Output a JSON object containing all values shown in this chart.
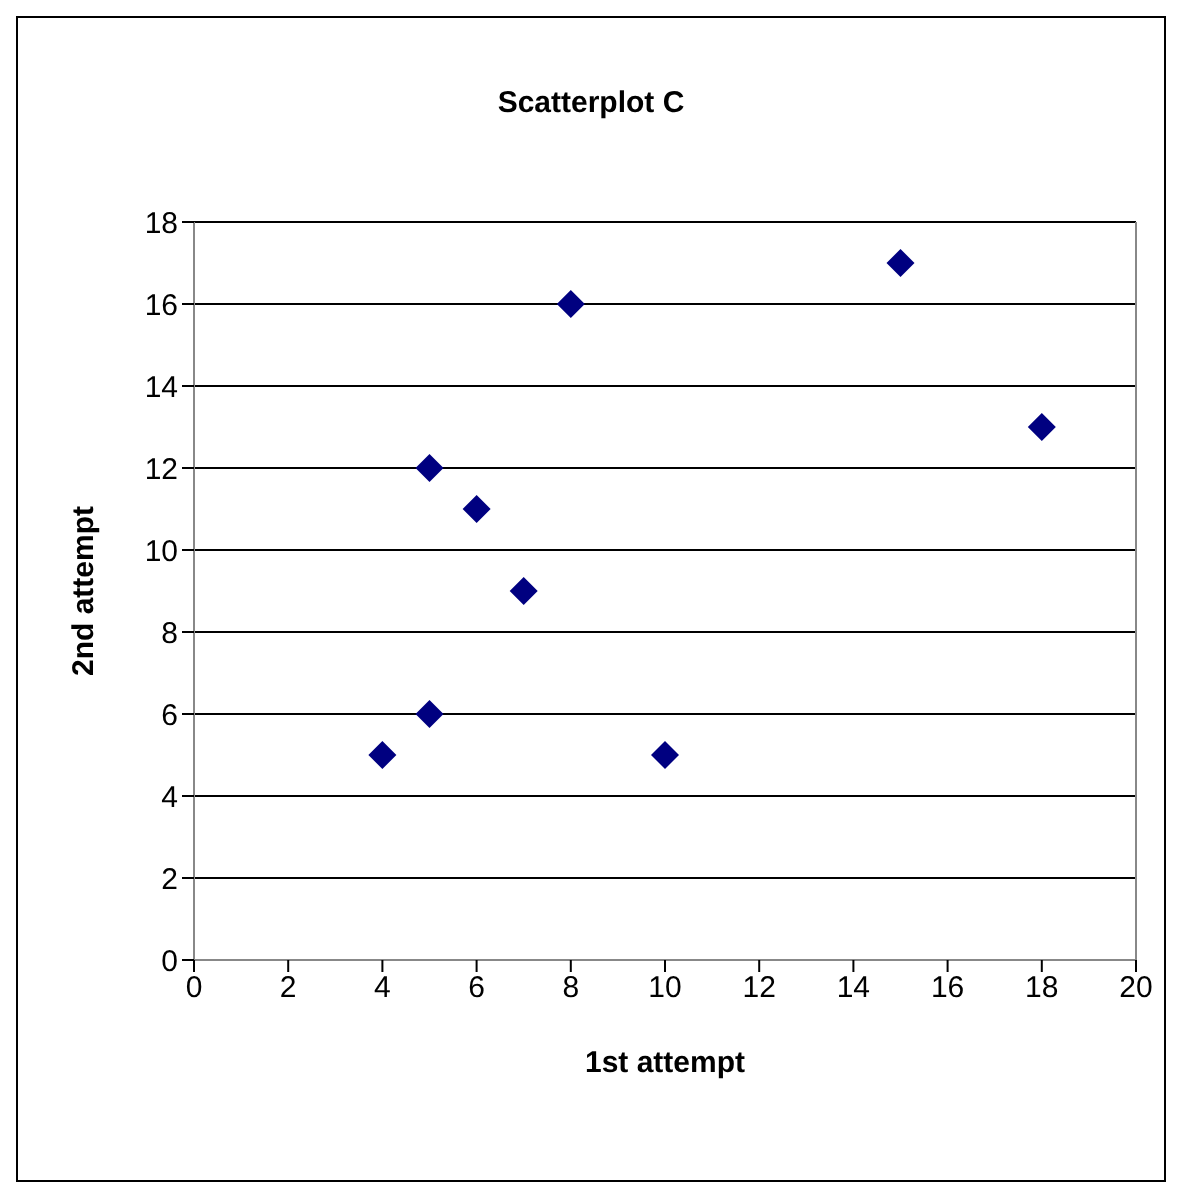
{
  "chart_data": {
    "type": "scatter",
    "title": "Scatterplot C",
    "xlabel": "1st attempt",
    "ylabel": "2nd attempt",
    "x": [
      4,
      5,
      5,
      6,
      7,
      8,
      10,
      15,
      18
    ],
    "series": [
      {
        "color": "#000080",
        "values": [
          5,
          6,
          12,
          11,
          9,
          16,
          5,
          17,
          13
        ]
      }
    ],
    "xlim": [
      0,
      20
    ],
    "xticks": [
      0,
      2,
      4,
      6,
      8,
      10,
      12,
      14,
      16,
      18,
      20
    ],
    "ylim": [
      0,
      18
    ],
    "yticks": [
      0,
      2,
      4,
      6,
      8,
      10,
      12,
      14,
      16,
      18
    ],
    "grid": "y",
    "marker": "diamond"
  }
}
